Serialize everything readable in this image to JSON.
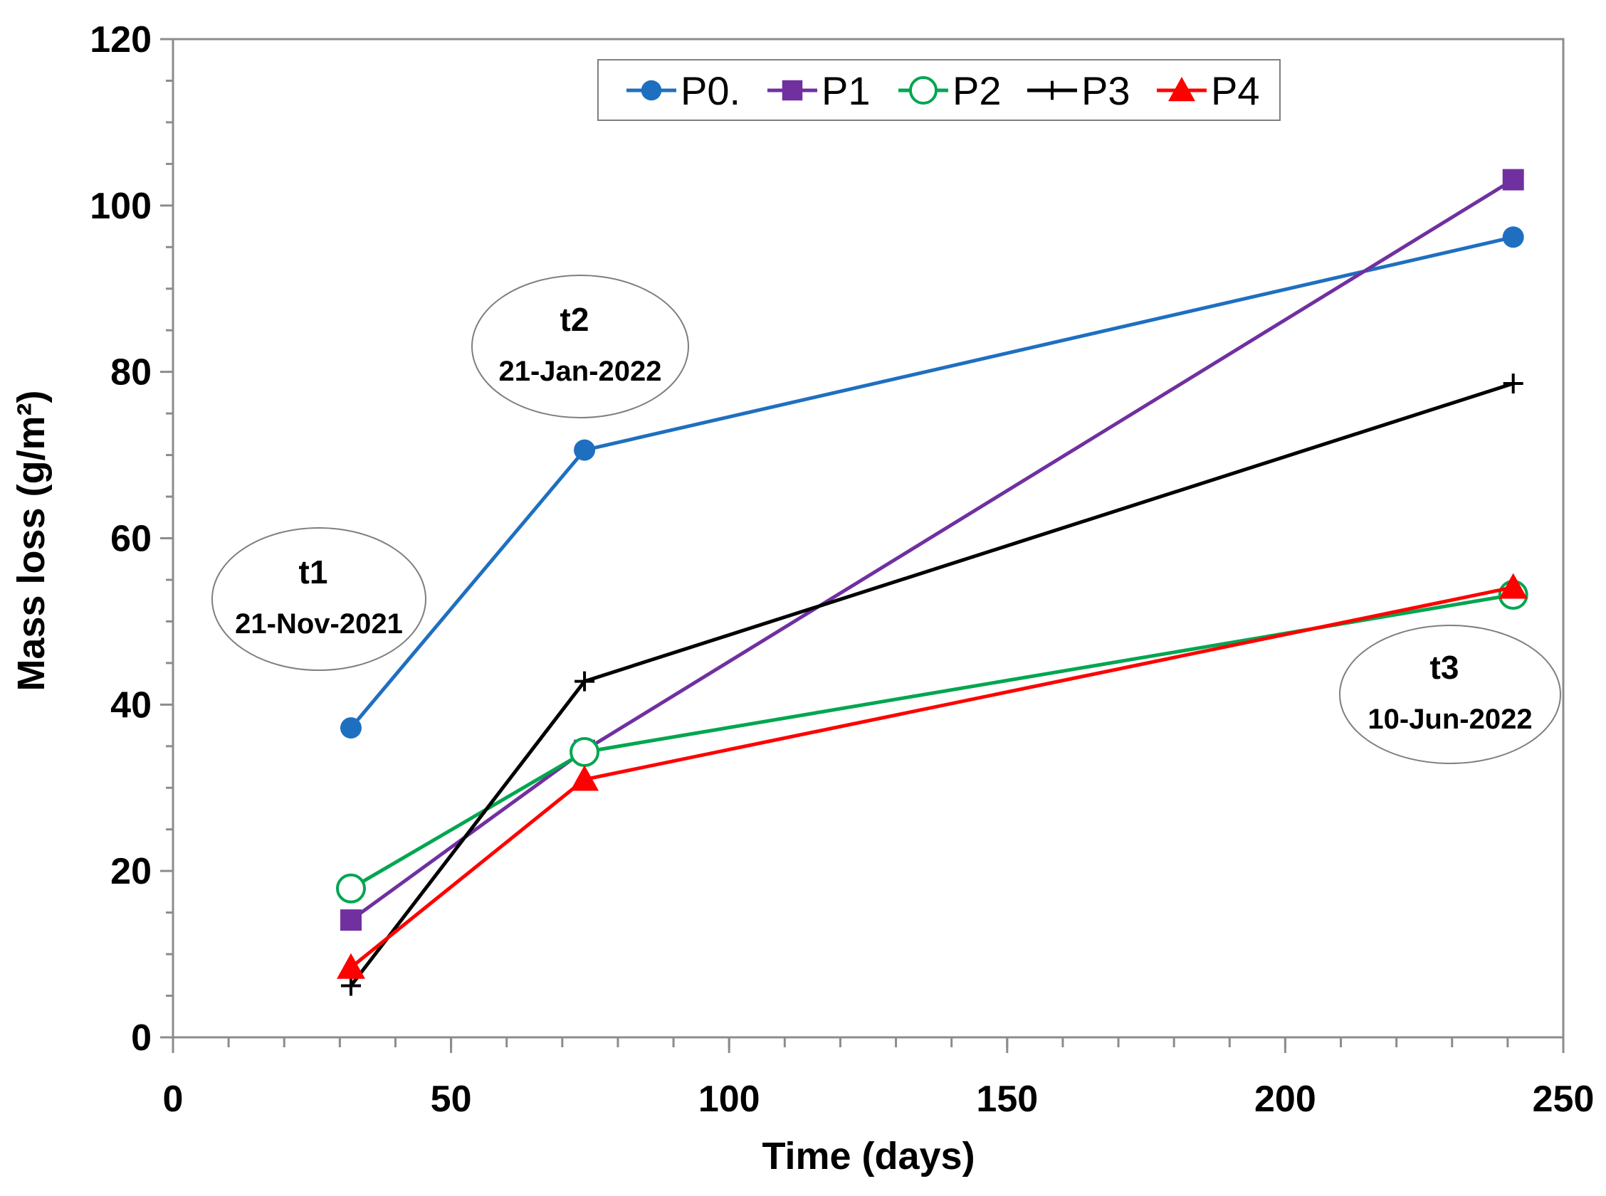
{
  "chart_data": {
    "type": "line",
    "xlabel": "Time (days)",
    "ylabel": "Mass loss (g/m²)",
    "xlim": [
      0,
      250
    ],
    "ylim": [
      0,
      120
    ],
    "x_ticks": [
      0,
      50,
      100,
      150,
      200,
      250
    ],
    "y_ticks": [
      0,
      20,
      40,
      60,
      80,
      100,
      120
    ],
    "grid": false,
    "legend_position": "top-center",
    "series": [
      {
        "name": "P0.",
        "color": "#1f6fc0",
        "marker": "filled-circle",
        "x": [
          32,
          74,
          241
        ],
        "values": [
          37.2,
          70.6,
          96.2
        ]
      },
      {
        "name": "P1",
        "color": "#7030a0",
        "marker": "filled-square",
        "x": [
          32,
          74,
          241
        ],
        "values": [
          14.1,
          34.5,
          103.1
        ]
      },
      {
        "name": "P2",
        "color": "#00a650",
        "marker": "open-circle",
        "x": [
          32,
          74,
          241
        ],
        "values": [
          17.9,
          34.3,
          53.2
        ]
      },
      {
        "name": "P3",
        "color": "#000000",
        "marker": "plus",
        "x": [
          32,
          74,
          241
        ],
        "values": [
          6.2,
          42.8,
          78.6
        ]
      },
      {
        "name": "P4",
        "color": "#ff0000",
        "marker": "filled-triangle",
        "x": [
          32,
          74,
          241
        ],
        "values": [
          8.4,
          31.0,
          54.1
        ]
      }
    ],
    "annotations": [
      {
        "title": "t1",
        "date": "21-Nov-2021"
      },
      {
        "title": "t2",
        "date": "21-Jan-2022"
      },
      {
        "title": "t3",
        "date": "10-Jun-2022"
      }
    ]
  }
}
